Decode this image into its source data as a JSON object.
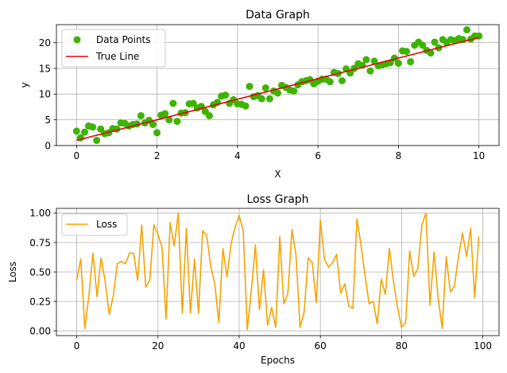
{
  "chart_data": [
    {
      "type": "scatter",
      "title": "Data Graph",
      "xlabel": "X",
      "ylabel": "y",
      "xlim": [
        -0.5,
        10.5
      ],
      "ylim": [
        0,
        23.5
      ],
      "xticks": [
        0,
        2,
        4,
        6,
        8,
        10
      ],
      "yticks": [
        0,
        5,
        10,
        15,
        20
      ],
      "grid": true,
      "legend_position": "top-left",
      "colors": {
        "points": "#3cb400",
        "line": "#e8000b"
      },
      "series": [
        {
          "name": "Data Points",
          "kind": "scatter",
          "x": [
            0,
            0.1,
            0.2,
            0.3,
            0.4,
            0.5,
            0.6,
            0.7,
            0.8,
            0.9,
            1.0,
            1.1,
            1.2,
            1.3,
            1.4,
            1.5,
            1.6,
            1.7,
            1.8,
            1.9,
            2.0,
            2.1,
            2.2,
            2.3,
            2.4,
            2.5,
            2.6,
            2.7,
            2.8,
            2.9,
            3.0,
            3.1,
            3.2,
            3.3,
            3.4,
            3.5,
            3.6,
            3.7,
            3.8,
            3.9,
            4.0,
            4.1,
            4.2,
            4.3,
            4.4,
            4.5,
            4.6,
            4.7,
            4.8,
            4.9,
            5.0,
            5.1,
            5.2,
            5.3,
            5.4,
            5.5,
            5.6,
            5.7,
            5.8,
            5.9,
            6.0,
            6.1,
            6.2,
            6.3,
            6.4,
            6.5,
            6.6,
            6.7,
            6.8,
            6.9,
            7.0,
            7.1,
            7.2,
            7.3,
            7.4,
            7.5,
            7.6,
            7.7,
            7.8,
            7.9,
            8.0,
            8.1,
            8.2,
            8.3,
            8.4,
            8.5,
            8.6,
            8.7,
            8.8,
            8.9,
            9.0,
            9.1,
            9.2,
            9.3,
            9.4,
            9.5,
            9.6,
            9.7,
            9.8,
            9.9,
            10.0
          ],
          "y": [
            2.8,
            1.5,
            2.6,
            3.8,
            3.6,
            1.0,
            3.2,
            2.3,
            2.5,
            3.3,
            3.2,
            4.4,
            4.3,
            3.8,
            4.1,
            4.2,
            5.8,
            4.4,
            4.9,
            4.1,
            2.5,
            5.9,
            6.2,
            5.0,
            8.2,
            4.7,
            6.3,
            6.4,
            8.1,
            8.2,
            7.3,
            7.6,
            6.6,
            5.8,
            7.9,
            8.4,
            9.6,
            9.8,
            8.2,
            8.9,
            8.1,
            8.0,
            7.7,
            11.5,
            9.5,
            9.7,
            9.1,
            11.2,
            9.1,
            10.6,
            10.2,
            11.7,
            11.3,
            10.8,
            10.6,
            11.8,
            12.4,
            12.6,
            12.8,
            12.0,
            12.5,
            12.9,
            12.9,
            12.4,
            14.2,
            14.0,
            12.6,
            14.9,
            14.1,
            15.0,
            15.9,
            15.6,
            16.7,
            14.5,
            16.4,
            15.5,
            15.7,
            15.9,
            16.1,
            17.0,
            16.0,
            18.4,
            18.3,
            16.3,
            19.5,
            20.1,
            19.5,
            18.5,
            18.0,
            20.1,
            19.0,
            20.6,
            20.0,
            20.6,
            20.4,
            20.8,
            20.6,
            22.5,
            20.7,
            21.3,
            21.3
          ]
        },
        {
          "name": "True Line",
          "kind": "line",
          "x": [
            0,
            10
          ],
          "y": [
            1,
            21
          ]
        }
      ]
    },
    {
      "type": "line",
      "title": "Loss Graph",
      "xlabel": "Epochs",
      "ylabel": "Loss",
      "xlim": [
        -5,
        104
      ],
      "ylim": [
        -0.04,
        1.04
      ],
      "xticks": [
        0,
        20,
        40,
        60,
        80,
        100
      ],
      "yticks": [
        "0.00",
        "0.25",
        "0.50",
        "0.75",
        "1.00"
      ],
      "grid": true,
      "legend_position": "top-left",
      "colors": {
        "line": "#f5a300"
      },
      "series": [
        {
          "name": "Loss",
          "values": [
            0.43,
            0.61,
            0.02,
            0.3,
            0.66,
            0.29,
            0.62,
            0.42,
            0.14,
            0.3,
            0.57,
            0.59,
            0.57,
            0.66,
            0.66,
            0.43,
            0.9,
            0.37,
            0.43,
            0.9,
            0.82,
            0.71,
            0.1,
            0.92,
            0.72,
            1.0,
            0.15,
            0.87,
            0.15,
            0.61,
            0.15,
            0.85,
            0.81,
            0.55,
            0.4,
            0.07,
            0.7,
            0.46,
            0.74,
            0.88,
            0.98,
            0.85,
            0.01,
            0.34,
            0.73,
            0.18,
            0.52,
            0.05,
            0.2,
            0.03,
            0.8,
            0.23,
            0.32,
            0.86,
            0.64,
            0.03,
            0.16,
            0.62,
            0.58,
            0.24,
            0.94,
            0.61,
            0.54,
            0.58,
            0.65,
            0.32,
            0.4,
            0.21,
            0.19,
            0.95,
            0.73,
            0.47,
            0.23,
            0.25,
            0.06,
            0.44,
            0.31,
            0.7,
            0.42,
            0.2,
            0.03,
            0.07,
            0.68,
            0.46,
            0.53,
            0.9,
            1.0,
            0.22,
            0.67,
            0.28,
            0.02,
            0.63,
            0.33,
            0.38,
            0.63,
            0.83,
            0.63,
            0.87,
            0.28,
            0.8
          ]
        }
      ]
    }
  ]
}
